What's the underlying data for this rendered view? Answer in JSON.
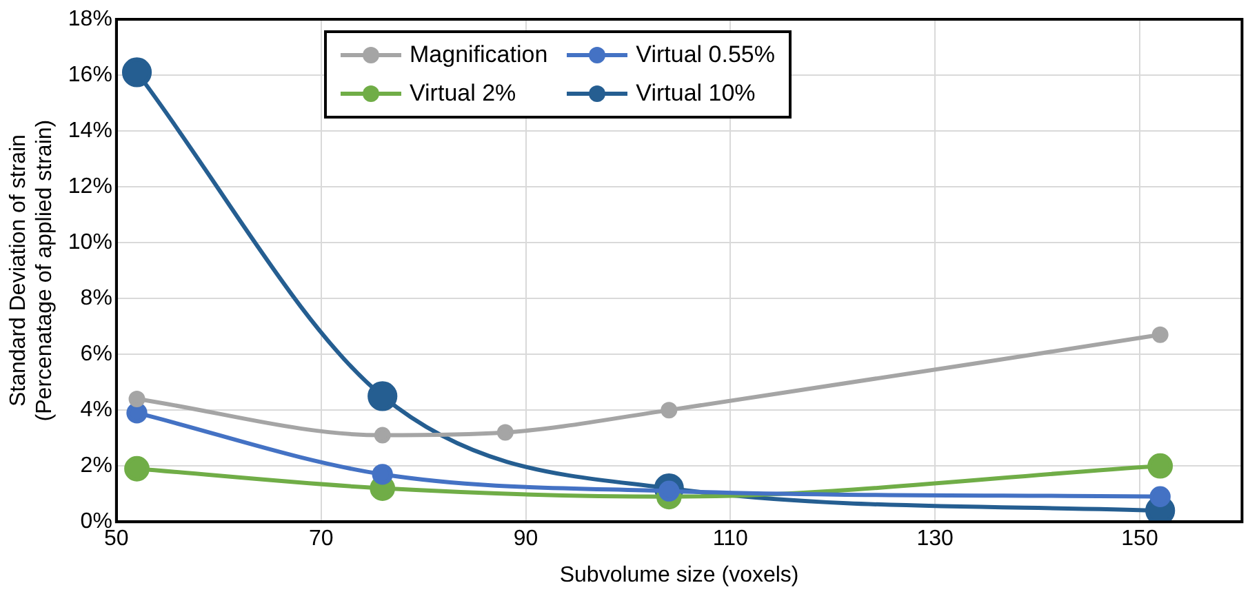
{
  "chart_data": {
    "type": "line",
    "xlabel": "Subvolume size (voxels)",
    "ylabel": "Standard Deviation of strain\n(Percenatage of applied strain)",
    "xlim": [
      50,
      160
    ],
    "xticks": [
      50,
      70,
      90,
      110,
      130,
      150
    ],
    "ylim": [
      0,
      18
    ],
    "yticks": [
      {
        "value": 0,
        "label": "0%"
      },
      {
        "value": 2,
        "label": "2%"
      },
      {
        "value": 4,
        "label": "4%"
      },
      {
        "value": 6,
        "label": "6%"
      },
      {
        "value": 8,
        "label": "8%"
      },
      {
        "value": 10,
        "label": "10%"
      },
      {
        "value": 12,
        "label": "12%"
      },
      {
        "value": 14,
        "label": "14%"
      },
      {
        "value": 16,
        "label": "16%"
      },
      {
        "value": 18,
        "label": "18%"
      }
    ],
    "grid": true,
    "legend": "top",
    "marker": "circle",
    "line_style": "solid",
    "series": [
      {
        "name": "Magnification",
        "color": "#a5a5a5",
        "x": [
          52,
          76,
          88,
          104,
          152
        ],
        "values": [
          4.4,
          3.1,
          3.2,
          4.0,
          6.7
        ]
      },
      {
        "name": "Virtual 0.55%",
        "color": "#4472c4",
        "x": [
          52,
          76,
          104,
          152
        ],
        "values": [
          3.9,
          1.7,
          1.1,
          0.9
        ]
      },
      {
        "name": "Virtual 2%",
        "color": "#70ad47",
        "x": [
          52,
          76,
          104,
          152
        ],
        "values": [
          1.9,
          1.2,
          0.9,
          2.0
        ]
      },
      {
        "name": "Virtual 10%",
        "color": "#255e91",
        "x": [
          52,
          76,
          104,
          152
        ],
        "values": [
          16.1,
          4.5,
          1.2,
          0.4
        ]
      }
    ]
  }
}
